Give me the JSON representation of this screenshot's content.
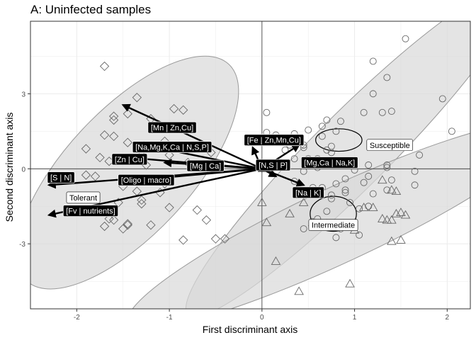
{
  "chart_data": {
    "type": "scatter",
    "title": "A: Uninfected samples",
    "xlabel": "First discriminant axis",
    "ylabel": "Second discriminant axis",
    "xlim": [
      -2.5,
      2.25
    ],
    "ylim": [
      -5.6,
      5.9
    ],
    "x_ticks": [
      -2,
      -1,
      0,
      1,
      2
    ],
    "y_ticks": [
      -3,
      0,
      3
    ],
    "x_tick_labels": [
      "-2",
      "-1",
      "0",
      "1",
      "2"
    ],
    "y_tick_labels": [
      "-3",
      "0",
      "3"
    ],
    "grid": true,
    "colors": {
      "ellipse_fill": "#d9d9d9",
      "ellipse_stroke": "#999999",
      "point_stroke": "#666666",
      "arrow": "#000000",
      "label_dark_bg": "#000000",
      "label_light_bg": "#ffffff"
    },
    "series": [
      {
        "name": "Tolerant",
        "marker": "diamond",
        "points": [
          [
            -1.7,
            4.1
          ],
          [
            -1.35,
            2.85
          ],
          [
            -1.6,
            2.1
          ],
          [
            -1.6,
            1.95
          ],
          [
            -1.45,
            2.2
          ],
          [
            -1.2,
            2.0
          ],
          [
            -0.95,
            2.4
          ],
          [
            -0.85,
            2.35
          ],
          [
            -1.7,
            1.35
          ],
          [
            -1.6,
            1.3
          ],
          [
            -1.9,
            0.8
          ],
          [
            -1.75,
            0.45
          ],
          [
            -1.45,
            1.05
          ],
          [
            -1.3,
            0.85
          ],
          [
            -1.15,
            1.65
          ],
          [
            -1.05,
            1.1
          ],
          [
            -1.0,
            0.55
          ],
          [
            -0.8,
            0.25
          ],
          [
            -0.55,
            0.65
          ],
          [
            -1.3,
            0.55
          ],
          [
            -1.25,
            0.15
          ],
          [
            -1.65,
            0.3
          ],
          [
            -1.8,
            -0.3
          ],
          [
            -1.5,
            -0.7
          ],
          [
            -1.4,
            -0.5
          ],
          [
            -1.35,
            -0.9
          ],
          [
            -1.3,
            -1.25
          ],
          [
            -1.1,
            -0.95
          ],
          [
            -1.55,
            -1.35
          ],
          [
            -1.75,
            -1.6
          ],
          [
            -1.6,
            -2.05
          ],
          [
            -1.7,
            -2.3
          ],
          [
            -1.5,
            -2.4
          ],
          [
            -1.45,
            -2.2
          ],
          [
            -1.65,
            -2.0
          ],
          [
            -1.45,
            -2.25
          ],
          [
            -1.2,
            -2.25
          ],
          [
            -1.0,
            -1.55
          ],
          [
            -0.7,
            -1.65
          ],
          [
            -0.6,
            -2.05
          ],
          [
            -0.85,
            -2.85
          ],
          [
            -0.5,
            -2.8
          ],
          [
            -0.4,
            -2.8
          ],
          [
            -1.3,
            -1.4
          ],
          [
            -1.9,
            -0.25
          ],
          [
            -1.05,
            -0.6
          ]
        ]
      },
      {
        "name": "Susceptible",
        "marker": "circle",
        "points": [
          [
            1.55,
            5.2
          ],
          [
            1.2,
            4.3
          ],
          [
            1.35,
            3.65
          ],
          [
            1.2,
            3.0
          ],
          [
            1.3,
            2.25
          ],
          [
            1.4,
            2.3
          ],
          [
            1.1,
            2.25
          ],
          [
            0.85,
            1.9
          ],
          [
            0.7,
            1.95
          ],
          [
            0.65,
            1.7
          ],
          [
            0.8,
            1.5
          ],
          [
            0.65,
            1.3
          ],
          [
            0.5,
            1.55
          ],
          [
            0.05,
            2.25
          ],
          [
            0.05,
            1.45
          ],
          [
            0.15,
            1.35
          ],
          [
            0.35,
            1.4
          ],
          [
            0.3,
            0.95
          ],
          [
            0.25,
            0.75
          ],
          [
            0.45,
            0.85
          ],
          [
            0.75,
            0.9
          ],
          [
            0.75,
            0.65
          ],
          [
            0.7,
            0.75
          ],
          [
            0.5,
            0.4
          ],
          [
            0.35,
            0.4
          ],
          [
            0.2,
            0.25
          ],
          [
            0.6,
            0.05
          ],
          [
            0.45,
            -0.1
          ],
          [
            0.35,
            -0.5
          ],
          [
            0.55,
            -0.75
          ],
          [
            0.9,
            -0.85
          ],
          [
            0.9,
            -0.4
          ],
          [
            1.0,
            -0.05
          ],
          [
            1.15,
            0.15
          ],
          [
            1.35,
            0.05
          ],
          [
            1.4,
            -0.45
          ],
          [
            1.35,
            -0.85
          ],
          [
            1.2,
            -1.0
          ],
          [
            1.1,
            -0.55
          ],
          [
            0.8,
            -0.6
          ],
          [
            0.65,
            -0.75
          ],
          [
            0.95,
            -1.35
          ],
          [
            1.05,
            -1.6
          ],
          [
            0.7,
            -1.7
          ],
          [
            0.6,
            -2.0
          ],
          [
            0.45,
            -2.4
          ],
          [
            0.85,
            -2.4
          ],
          [
            0.8,
            -2.75
          ],
          [
            1.05,
            -2.65
          ],
          [
            1.65,
            -0.65
          ],
          [
            1.65,
            -0.1
          ],
          [
            1.7,
            0.55
          ],
          [
            1.95,
            2.8
          ],
          [
            2.05,
            1.5
          ],
          [
            1.35,
            0.15
          ],
          [
            1.15,
            -0.3
          ],
          [
            0.75,
            -1.05
          ],
          [
            0.75,
            -1.2
          ],
          [
            1.15,
            -1.5
          ],
          [
            0.5,
            0.3
          ],
          [
            0.45,
            0.95
          ],
          [
            0.6,
            0.4
          ],
          [
            0.9,
            -0.95
          ]
        ]
      },
      {
        "name": "Intermediate",
        "marker": "triangle",
        "points": [
          [
            0.0,
            -1.35
          ],
          [
            0.05,
            -2.15
          ],
          [
            0.3,
            -1.8
          ],
          [
            0.45,
            -1.35
          ],
          [
            0.55,
            -2.15
          ],
          [
            0.7,
            -2.2
          ],
          [
            1.0,
            -2.45
          ],
          [
            1.1,
            -1.55
          ],
          [
            1.2,
            -1.55
          ],
          [
            1.3,
            -2.0
          ],
          [
            1.35,
            -2.05
          ],
          [
            1.4,
            -2.05
          ],
          [
            1.45,
            -1.8
          ],
          [
            1.5,
            -1.75
          ],
          [
            1.55,
            -1.85
          ],
          [
            1.4,
            -2.9
          ],
          [
            1.5,
            -2.85
          ],
          [
            0.95,
            -4.6
          ],
          [
            0.4,
            -4.9
          ],
          [
            0.15,
            -3.7
          ],
          [
            1.3,
            -0.45
          ],
          [
            1.4,
            -0.85
          ],
          [
            1.45,
            -0.9
          ]
        ]
      }
    ],
    "ellipses": [
      {
        "name": "Tolerant",
        "cx": -1.45,
        "cy": -0.15,
        "rx": 1.6,
        "ry": 2.5,
        "angle_deg": 47
      },
      {
        "name": "Susceptible",
        "cx": 0.97,
        "cy": 0.72,
        "rx": 2.5,
        "ry": 1.5,
        "angle_deg": 45
      },
      {
        "name": "Intermediate",
        "cx": 0.82,
        "cy": -2.25,
        "rx": 2.5,
        "ry": 1.5,
        "angle_deg": 25
      },
      {
        "name": "Susceptible-centroid",
        "cx": 0.83,
        "cy": 1.15,
        "rx": 0.25,
        "ry": 0.45,
        "angle_deg": 0
      },
      {
        "name": "Intermediate-centroid",
        "cx": 0.77,
        "cy": -1.8,
        "rx": 0.25,
        "ry": 0.7,
        "angle_deg": 0
      }
    ],
    "vectors": [
      {
        "label": "[Mn | Zn,Cu]",
        "x": -1.5,
        "y": 2.55,
        "lx": -0.97,
        "ly": 1.65
      },
      {
        "label": "[Na,Mg,K,Ca | N,S,P]",
        "x": -1.35,
        "y": 1.0,
        "lx": -0.97,
        "ly": 0.87
      },
      {
        "label": "[Zn | Cu]",
        "x": -1.45,
        "y": 0.45,
        "lx": -1.43,
        "ly": 0.38
      },
      {
        "label": "[Mg | Ca]",
        "x": -1.05,
        "y": 0.25,
        "lx": -0.61,
        "ly": 0.12
      },
      {
        "label": "[S | N]",
        "x": -2.3,
        "y": -0.65,
        "lx": -2.17,
        "ly": -0.35
      },
      {
        "label": "[Oligo | macro]",
        "x": -1.35,
        "y": -0.45,
        "lx": -1.25,
        "ly": -0.45
      },
      {
        "label": "[Fv | nutrients]",
        "x": -2.3,
        "y": -1.85,
        "lx": -1.85,
        "ly": -1.68
      },
      {
        "label": "[Fe | Zn,Mn,Cu]",
        "x": -0.1,
        "y": 0.85,
        "lx": 0.13,
        "ly": 1.15
      },
      {
        "label": "[N,S | P]",
        "x": 0.0,
        "y": 0.15,
        "lx": 0.12,
        "ly": 0.15
      },
      {
        "label": "[Mg,Ca | Na,K]",
        "x": 0.4,
        "y": 0.95,
        "lx": 0.73,
        "ly": 0.25
      },
      {
        "label": "[Na | K]",
        "x": 0.45,
        "y": -0.65,
        "lx": 0.5,
        "ly": -0.95
      },
      {
        "label": "",
        "x": 0.15,
        "y": -0.3,
        "lx": null,
        "ly": null
      }
    ],
    "group_labels": [
      {
        "text": "Tolerant",
        "x": -1.93,
        "y": -1.15
      },
      {
        "text": "Susceptible",
        "x": 1.38,
        "y": 0.95
      },
      {
        "text": "Intermediate",
        "x": 0.77,
        "y": -2.25
      }
    ]
  }
}
